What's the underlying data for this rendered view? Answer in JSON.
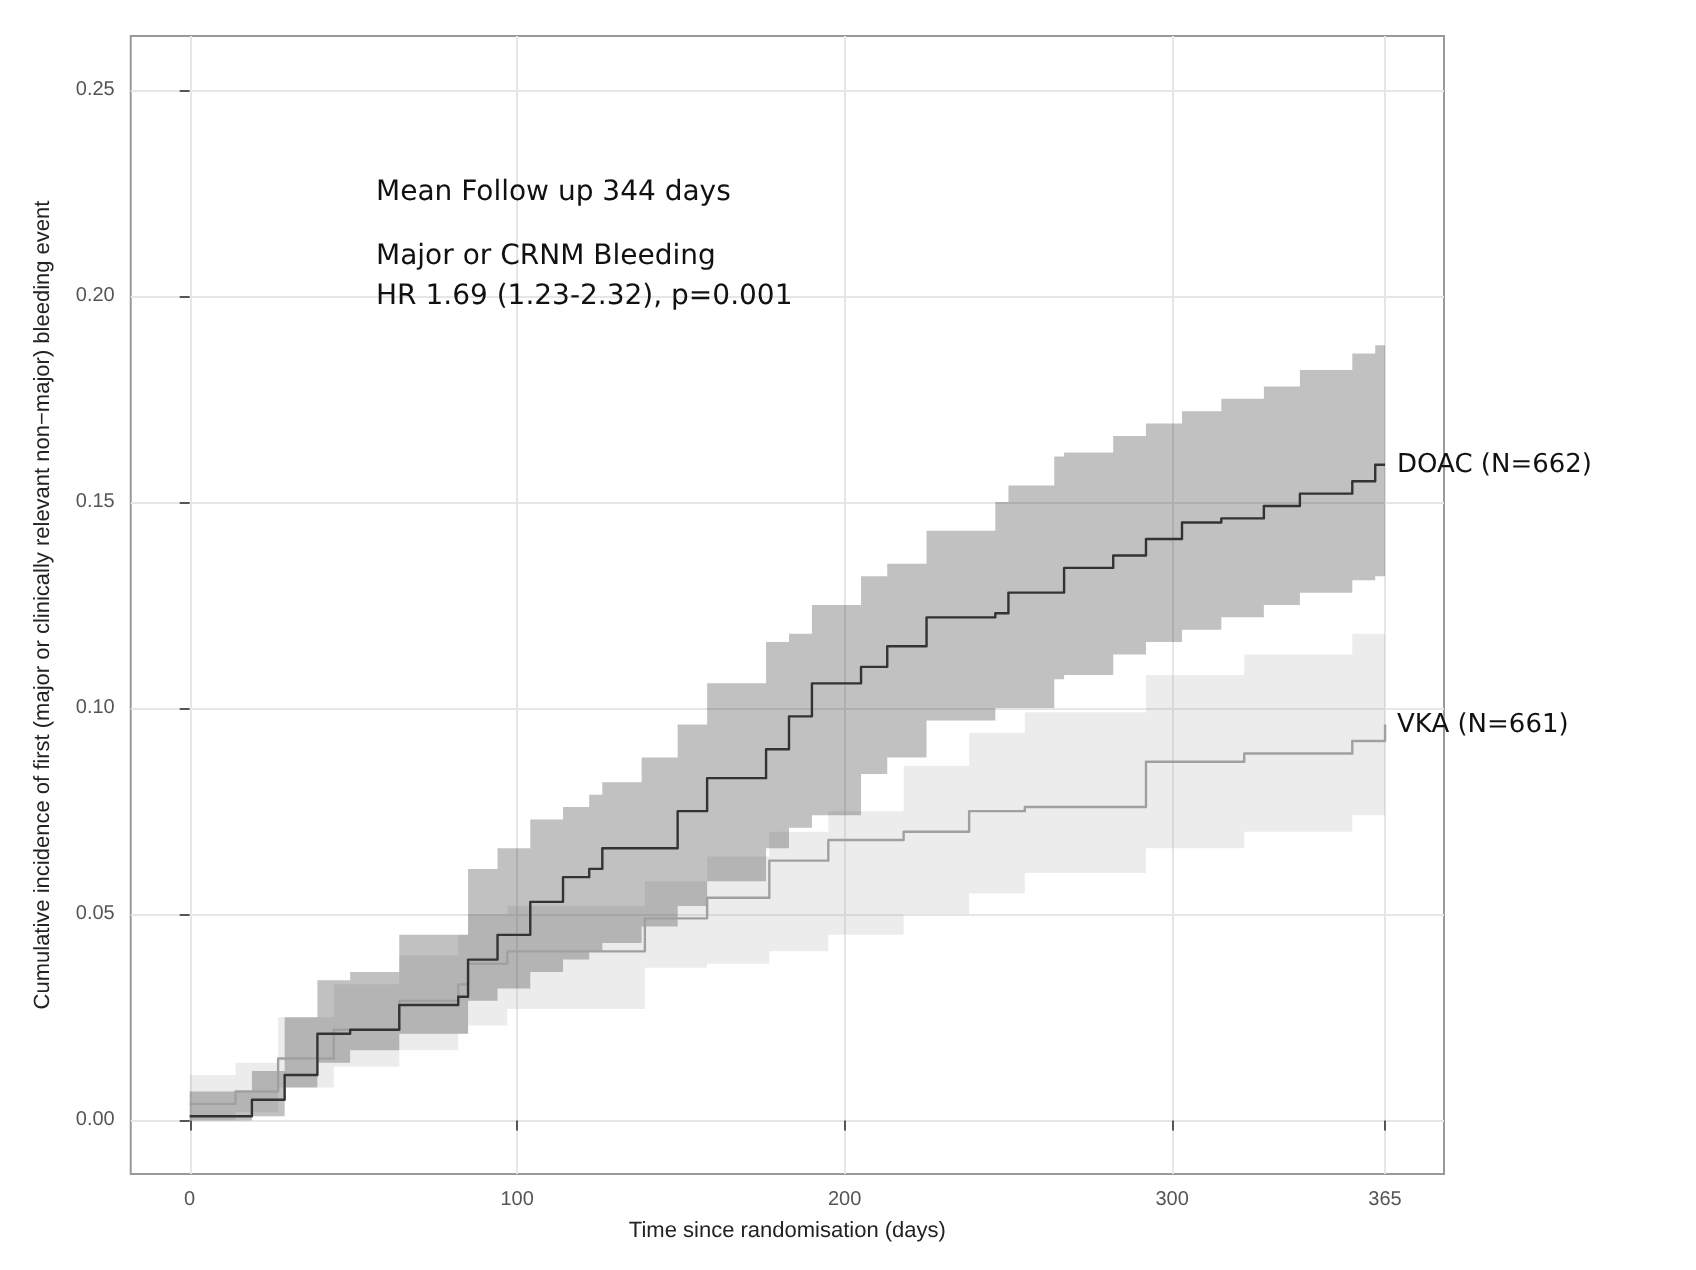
{
  "chart_data": {
    "type": "step",
    "xlabel": "Time since randomisation (days)",
    "ylabel": "Cumulative incidence of first (major or clinically relevant non−major) bleeding event",
    "annotations": [
      "Mean Follow up 344 days",
      "Major or CRNM Bleeding\nHR 1.69 (1.23-2.32), p=0.001"
    ],
    "xlim": [
      -18,
      383
    ],
    "ylim": [
      -0.013,
      0.263
    ],
    "xticks": [
      0,
      100,
      200,
      300,
      365
    ],
    "yticks": [
      {
        "value": 0,
        "label": "0.00"
      },
      {
        "value": 0.05,
        "label": "0.05"
      },
      {
        "value": 0.1,
        "label": "0.10"
      },
      {
        "value": 0.15,
        "label": "0.15"
      },
      {
        "value": 0.2,
        "label": "0.20"
      },
      {
        "value": 0.25,
        "label": "0.25"
      }
    ],
    "grid": true,
    "legend": false,
    "marker": "none",
    "line_style": "solid",
    "series": [
      {
        "name": "VKA (N=661)",
        "color": "#a0a0a0",
        "x": [
          0,
          14,
          27,
          44,
          64,
          82,
          85,
          97,
          139,
          158,
          177,
          195,
          218,
          238,
          255,
          292,
          322,
          355,
          365
        ],
        "values": [
          0.004,
          0.007,
          0.015,
          0.022,
          0.029,
          0.033,
          0.038,
          0.041,
          0.049,
          0.054,
          0.063,
          0.068,
          0.07,
          0.075,
          0.076,
          0.087,
          0.089,
          0.092,
          0.096
        ],
        "upper": [
          0.011,
          0.014,
          0.025,
          0.033,
          0.04,
          0.045,
          0.05,
          0.052,
          0.058,
          0.064,
          0.07,
          0.075,
          0.086,
          0.094,
          0.099,
          0.108,
          0.113,
          0.118,
          0.12
        ],
        "lower": [
          0,
          0.002,
          0.008,
          0.013,
          0.017,
          0.021,
          0.023,
          0.027,
          0.037,
          0.038,
          0.041,
          0.045,
          0.05,
          0.055,
          0.06,
          0.066,
          0.07,
          0.074,
          0.075
        ]
      },
      {
        "name": "DOAC (N=662)",
        "color": "#333333",
        "x": [
          0,
          14,
          19,
          29,
          39,
          49,
          64,
          82,
          85,
          94,
          104,
          114,
          122,
          126,
          138,
          149,
          158,
          176,
          183,
          190,
          205,
          213,
          225,
          246,
          250,
          264,
          267,
          282,
          292,
          303,
          315,
          328,
          339,
          355,
          362,
          365
        ],
        "values": [
          0.001,
          0.001,
          0.005,
          0.011,
          0.021,
          0.022,
          0.028,
          0.03,
          0.039,
          0.045,
          0.053,
          0.059,
          0.061,
          0.066,
          0.066,
          0.075,
          0.083,
          0.09,
          0.098,
          0.106,
          0.11,
          0.115,
          0.122,
          0.123,
          0.128,
          0.128,
          0.134,
          0.137,
          0.141,
          0.145,
          0.146,
          0.149,
          0.152,
          0.155,
          0.159,
          0.159
        ],
        "upper": [
          0.007,
          0.007,
          0.012,
          0.025,
          0.034,
          0.036,
          0.045,
          0.045,
          0.061,
          0.066,
          0.073,
          0.076,
          0.079,
          0.082,
          0.088,
          0.096,
          0.106,
          0.116,
          0.118,
          0.125,
          0.132,
          0.135,
          0.143,
          0.15,
          0.154,
          0.161,
          0.162,
          0.166,
          0.169,
          0.172,
          0.175,
          0.178,
          0.182,
          0.186,
          0.188,
          0.188
        ],
        "lower": [
          0,
          0,
          0.001,
          0.008,
          0.014,
          0.017,
          0.021,
          0.021,
          0.029,
          0.032,
          0.036,
          0.039,
          0.041,
          0.043,
          0.047,
          0.052,
          0.058,
          0.066,
          0.071,
          0.074,
          0.084,
          0.088,
          0.097,
          0.1,
          0.1,
          0.107,
          0.108,
          0.113,
          0.116,
          0.119,
          0.122,
          0.125,
          0.128,
          0.131,
          0.132,
          0.132
        ]
      }
    ]
  }
}
